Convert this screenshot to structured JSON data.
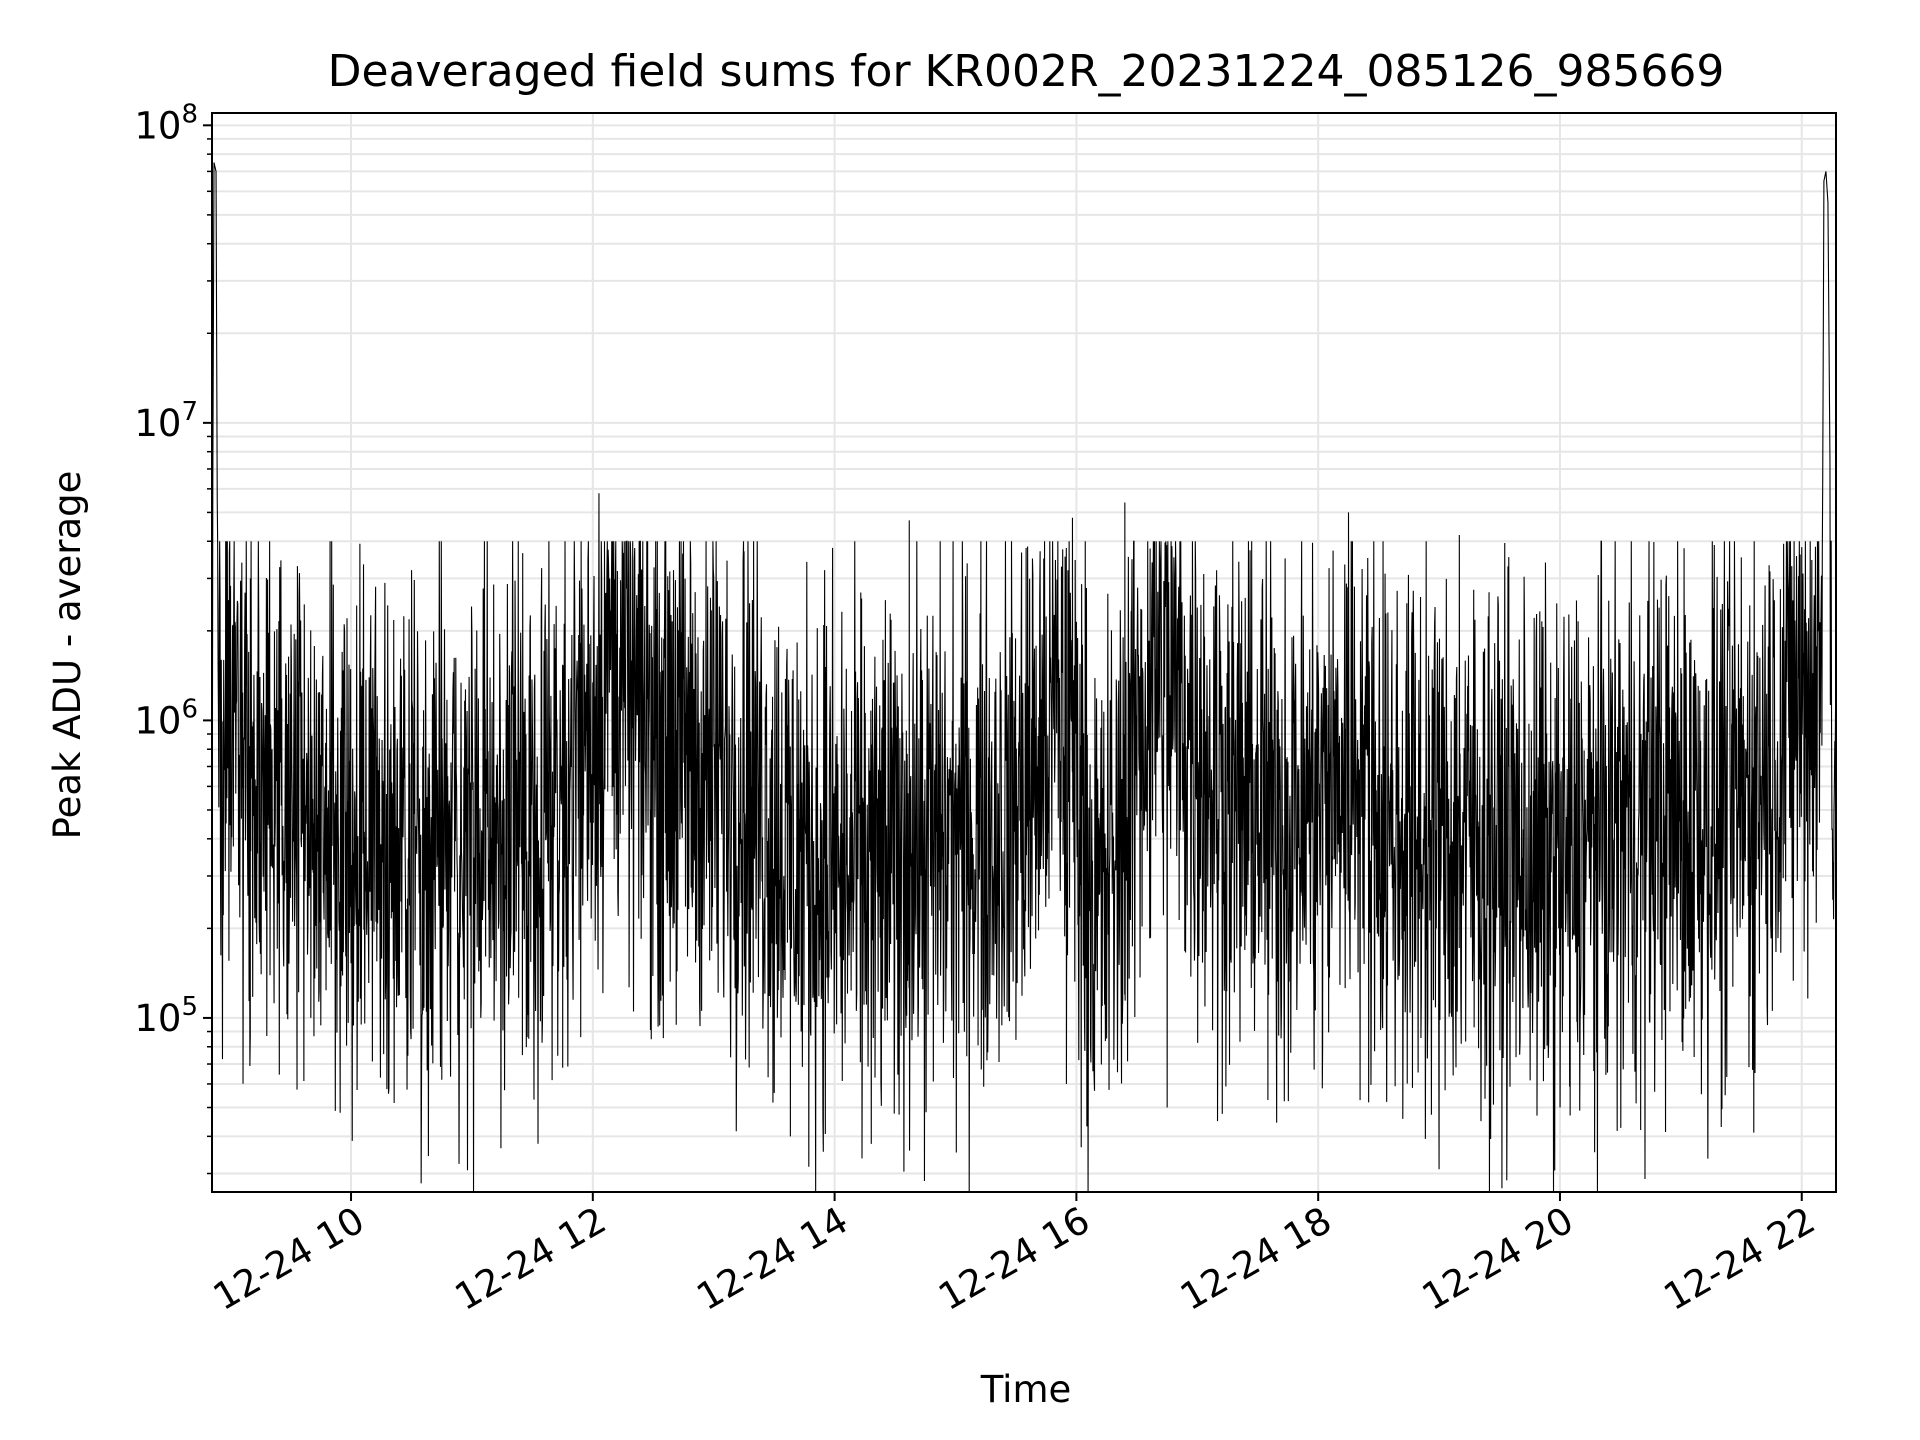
{
  "chart_data": {
    "type": "line",
    "title": "Deaveraged field sums for KR002R_20231224_085126_985669",
    "xlabel": "Time",
    "ylabel": "Peak ADU - average",
    "yscale": "log",
    "ylim": [
      26000,
      110000000
    ],
    "xlim": [
      "2023-12-24 08:51",
      "2023-12-24 22:17"
    ],
    "grid": true,
    "line_color": "#000000",
    "grid_color": "#e6e6e6",
    "x_ticks": [
      {
        "t": "2023-12-24 10:00",
        "label": "12-24 10"
      },
      {
        "t": "2023-12-24 12:00",
        "label": "12-24 12"
      },
      {
        "t": "2023-12-24 14:00",
        "label": "12-24 14"
      },
      {
        "t": "2023-12-24 16:00",
        "label": "12-24 16"
      },
      {
        "t": "2023-12-24 18:00",
        "label": "12-24 18"
      },
      {
        "t": "2023-12-24 20:00",
        "label": "12-24 20"
      },
      {
        "t": "2023-12-24 22:00",
        "label": "12-24 22"
      }
    ],
    "y_ticks": [
      {
        "v": 100000,
        "base": "10",
        "exp": "5"
      },
      {
        "v": 1000000,
        "base": "10",
        "exp": "6"
      },
      {
        "v": 10000000,
        "base": "10",
        "exp": "7"
      },
      {
        "v": 100000000,
        "base": "10",
        "exp": "8"
      }
    ],
    "series": [
      {
        "color": "#000000",
        "points": [
          [
            "2023-12-24 08:51",
            1200000
          ],
          [
            "2023-12-24 08:52",
            75000000
          ],
          [
            "2023-12-24 08:53",
            70000000
          ],
          [
            "2023-12-24 08:54",
            1000000
          ],
          [
            "2023-12-24 09:00",
            800000
          ],
          [
            "2023-12-24 09:15",
            550000
          ],
          [
            "2023-12-24 09:30",
            500000
          ],
          [
            "2023-12-24 09:45",
            450000
          ],
          [
            "2023-12-24 10:00",
            420000
          ],
          [
            "2023-12-24 10:15",
            420000
          ],
          [
            "2023-12-24 10:30",
            400000
          ],
          [
            "2023-12-24 10:45",
            380000
          ],
          [
            "2023-12-24 11:00",
            380000
          ],
          [
            "2023-12-24 11:15",
            420000
          ],
          [
            "2023-12-24 11:30",
            500000
          ],
          [
            "2023-12-24 11:45",
            650000
          ],
          [
            "2023-12-24 12:00",
            1000000
          ],
          [
            "2023-12-24 12:10",
            1800000
          ],
          [
            "2023-12-24 12:20",
            1100000
          ],
          [
            "2023-12-24 12:35",
            900000
          ],
          [
            "2023-12-24 12:50",
            700000
          ],
          [
            "2023-12-24 13:05",
            650000
          ],
          [
            "2023-12-24 13:20",
            600000
          ],
          [
            "2023-12-24 13:35",
            400000
          ],
          [
            "2023-12-24 13:50",
            330000
          ],
          [
            "2023-12-24 14:05",
            300000
          ],
          [
            "2023-12-24 14:20",
            320000
          ],
          [
            "2023-12-24 14:35",
            350000
          ],
          [
            "2023-12-24 14:50",
            380000
          ],
          [
            "2023-12-24 15:05",
            420000
          ],
          [
            "2023-12-24 15:20",
            450000
          ],
          [
            "2023-12-24 15:35",
            550000
          ],
          [
            "2023-12-24 15:50",
            1100000
          ],
          [
            "2023-12-24 16:00",
            700000
          ],
          [
            "2023-12-24 16:10",
            220000
          ],
          [
            "2023-12-24 16:20",
            350000
          ],
          [
            "2023-12-24 16:30",
            900000
          ],
          [
            "2023-12-24 16:40",
            1500000
          ],
          [
            "2023-12-24 16:50",
            1200000
          ],
          [
            "2023-12-24 17:05",
            700000
          ],
          [
            "2023-12-24 17:20",
            550000
          ],
          [
            "2023-12-24 17:35",
            500000
          ],
          [
            "2023-12-24 17:50",
            480000
          ],
          [
            "2023-12-24 18:05",
            550000
          ],
          [
            "2023-12-24 18:20",
            800000
          ],
          [
            "2023-12-24 18:35",
            420000
          ],
          [
            "2023-12-24 18:50",
            400000
          ],
          [
            "2023-12-24 19:05",
            380000
          ],
          [
            "2023-12-24 19:20",
            380000
          ],
          [
            "2023-12-24 19:35",
            360000
          ],
          [
            "2023-12-24 19:50",
            330000
          ],
          [
            "2023-12-24 20:05",
            330000
          ],
          [
            "2023-12-24 20:20",
            400000
          ],
          [
            "2023-12-24 20:35",
            450000
          ],
          [
            "2023-12-24 20:50",
            480000
          ],
          [
            "2023-12-24 21:05",
            450000
          ],
          [
            "2023-12-24 21:20",
            500000
          ],
          [
            "2023-12-24 21:35",
            550000
          ],
          [
            "2023-12-24 21:50",
            900000
          ],
          [
            "2023-12-24 22:00",
            1200000
          ],
          [
            "2023-12-24 22:10",
            1300000
          ],
          [
            "2023-12-24 22:11",
            65000000
          ],
          [
            "2023-12-24 22:12",
            70000000
          ],
          [
            "2023-12-24 22:13",
            55000000
          ],
          [
            "2023-12-24 22:15",
            1000000
          ],
          [
            "2023-12-24 22:17",
            800000
          ]
        ],
        "extremes": [
          [
            "2023-12-24 09:10",
            3000000
          ],
          [
            "2023-12-24 09:40",
            100000
          ],
          [
            "2023-12-24 10:05",
            95000
          ],
          [
            "2023-12-24 10:30",
            3200000
          ],
          [
            "2023-12-24 10:45",
            62000
          ],
          [
            "2023-12-24 11:25",
            75000
          ],
          [
            "2023-12-24 11:45",
            68000
          ],
          [
            "2023-12-24 12:03",
            5800000
          ],
          [
            "2023-12-24 12:40",
            3200000
          ],
          [
            "2023-12-24 13:15",
            3700000
          ],
          [
            "2023-12-24 13:30",
            56000
          ],
          [
            "2023-12-24 13:38",
            40000
          ],
          [
            "2023-12-24 13:55",
            3200000
          ],
          [
            "2023-12-24 14:20",
            63000
          ],
          [
            "2023-12-24 14:37",
            4700000
          ],
          [
            "2023-12-24 15:35",
            3800000
          ],
          [
            "2023-12-24 15:58",
            4800000
          ],
          [
            "2023-12-24 15:55",
            60000
          ],
          [
            "2023-12-24 16:24",
            5400000
          ],
          [
            "2023-12-24 16:45",
            50000
          ],
          [
            "2023-12-24 17:10",
            45000
          ],
          [
            "2023-12-24 17:35",
            53000
          ],
          [
            "2023-12-24 18:02",
            58000
          ],
          [
            "2023-12-24 18:15",
            5000000
          ],
          [
            "2023-12-24 18:25",
            52000
          ],
          [
            "2023-12-24 19:10",
            4200000
          ],
          [
            "2023-12-24 20:00",
            50000
          ],
          [
            "2023-12-24 20:05",
            47000
          ],
          [
            "2023-12-24 20:40",
            42000
          ],
          [
            "2023-12-24 21:20",
            43000
          ],
          [
            "2023-12-24 21:55",
            3300000
          ]
        ]
      }
    ]
  }
}
